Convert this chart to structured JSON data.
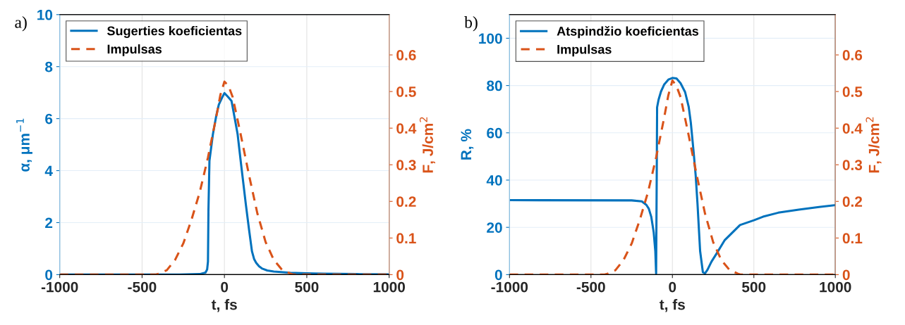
{
  "chart_data": [
    {
      "type": "line",
      "annotations": [
        "a)"
      ],
      "xlabel": "t, fs",
      "ylabel": "α, μm$^{−1}$",
      "y2label": "F, J/cm$^{2}$",
      "xlim": [
        -1000,
        1000
      ],
      "xticks": [
        -1000,
        -500,
        0,
        500,
        1000
      ],
      "ylim": [
        0,
        10
      ],
      "yticks": [
        0,
        2,
        4,
        6,
        8,
        10
      ],
      "y2lim": [
        0,
        0.71
      ],
      "y2ticks": [
        0,
        0.1,
        0.2,
        0.3,
        0.4,
        0.5,
        0.6
      ],
      "grid": true,
      "legend": "top left",
      "marker": "none",
      "series": [
        {
          "name": "Sugerties koeficientas",
          "color": "#0072bd",
          "line_style": "solid",
          "x": [
            -1000,
            -300,
            -150,
            -115,
            -105,
            -100,
            -97,
            -91,
            -70,
            -50,
            -34,
            -15,
            0,
            20,
            43,
            60,
            80,
            100,
            130,
            150,
            167,
            180,
            193,
            210,
            230,
            260,
            300,
            400,
            500,
            600,
            800,
            1000
          ],
          "values": [
            0,
            0,
            0.02,
            0.08,
            0.2,
            0.5,
            2.5,
            4.38,
            5.4,
            6.1,
            6.54,
            6.8,
            6.98,
            6.85,
            6.68,
            6.1,
            5.4,
            4.3,
            2.7,
            1.7,
            0.9,
            0.6,
            0.45,
            0.32,
            0.23,
            0.16,
            0.12,
            0.07,
            0.05,
            0.04,
            0.02,
            0.01
          ]
        },
        {
          "name": "Impulsas",
          "color": "#d95319",
          "line_style": "dashed",
          "axis": "y2",
          "x": [
            -1000,
            -420,
            -400,
            -350,
            -300,
            -250,
            -200,
            -150,
            -100,
            -50,
            -25,
            0,
            25,
            50,
            100,
            150,
            200,
            250,
            300,
            350,
            400,
            420,
            1000
          ],
          "values": [
            0,
            0,
            0.002,
            0.012,
            0.04,
            0.085,
            0.15,
            0.225,
            0.32,
            0.43,
            0.49,
            0.527,
            0.515,
            0.485,
            0.38,
            0.27,
            0.167,
            0.089,
            0.04,
            0.013,
            0.003,
            0,
            0
          ]
        }
      ]
    },
    {
      "type": "line",
      "annotations": [
        "b)"
      ],
      "xlabel": "t, fs",
      "ylabel": "R, %",
      "y2label": "F, J/cm$^{2}$",
      "xlim": [
        -1000,
        1000
      ],
      "xticks": [
        -1000,
        -500,
        0,
        500,
        1000
      ],
      "ylim": [
        0,
        110
      ],
      "yticks": [
        0,
        20,
        40,
        60,
        80,
        100
      ],
      "y2lim": [
        0,
        0.71
      ],
      "y2ticks": [
        0,
        0.1,
        0.2,
        0.3,
        0.4,
        0.5,
        0.6
      ],
      "grid": true,
      "legend": "top left",
      "marker": "none",
      "series": [
        {
          "name": "Atspindžio koeficientas",
          "color": "#0072bd",
          "line_style": "solid",
          "x": [
            -1000,
            -250,
            -188,
            -160,
            -145,
            -130,
            -115,
            -105,
            -100,
            -96,
            -94,
            -85,
            -70,
            -50,
            -25,
            0,
            25,
            50,
            78,
            100,
            113,
            130,
            143,
            154,
            170,
            187,
            200,
            215,
            240,
            272,
            320,
            415,
            500,
            556,
            650,
            776,
            900,
            1000
          ],
          "values": [
            31.5,
            31.4,
            31,
            29.5,
            27.9,
            24.5,
            18,
            10,
            0.5,
            45,
            70.8,
            74,
            77.5,
            80.5,
            82.5,
            83.2,
            83,
            81,
            77.2,
            71,
            64.3,
            52,
            41.8,
            30,
            10,
            1,
            0.5,
            2,
            5.5,
            9,
            14.5,
            21,
            23,
            24.5,
            26.2,
            27.5,
            28.6,
            29.4
          ]
        },
        {
          "name": "Impulsas",
          "color": "#d95319",
          "line_style": "dashed",
          "axis": "y2",
          "x": [
            -1000,
            -420,
            -400,
            -350,
            -300,
            -250,
            -200,
            -150,
            -100,
            -50,
            -25,
            0,
            25,
            50,
            100,
            150,
            200,
            250,
            300,
            350,
            400,
            420,
            1000
          ],
          "values": [
            0,
            0,
            0.002,
            0.012,
            0.04,
            0.085,
            0.15,
            0.225,
            0.32,
            0.43,
            0.49,
            0.53,
            0.515,
            0.485,
            0.38,
            0.27,
            0.167,
            0.089,
            0.04,
            0.013,
            0.003,
            0,
            0
          ]
        }
      ]
    }
  ]
}
